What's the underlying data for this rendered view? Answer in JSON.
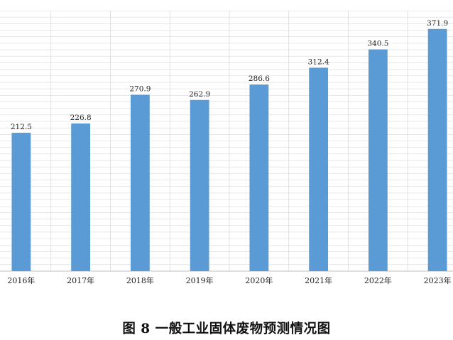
{
  "caption": "图 8  一般工业固体废物预测情况图",
  "chart_data": {
    "type": "bar",
    "categories": [
      "2016年",
      "2017年",
      "2018年",
      "2019年",
      "2020年",
      "2021年",
      "2022年",
      "2023年"
    ],
    "values": [
      212.5,
      226.8,
      270.9,
      262.9,
      286.6,
      312.4,
      340.5,
      371.9
    ],
    "value_labels": [
      "212.5",
      "226.8",
      "270.9",
      "262.9",
      "286.6",
      "312.4",
      "340.5",
      "371.9"
    ],
    "ylim": [
      0,
      400
    ],
    "grid": true,
    "colors": {
      "bar": "#5b9bd5",
      "grid": "#d9d9d9",
      "axis": "#bfbfbf"
    }
  }
}
